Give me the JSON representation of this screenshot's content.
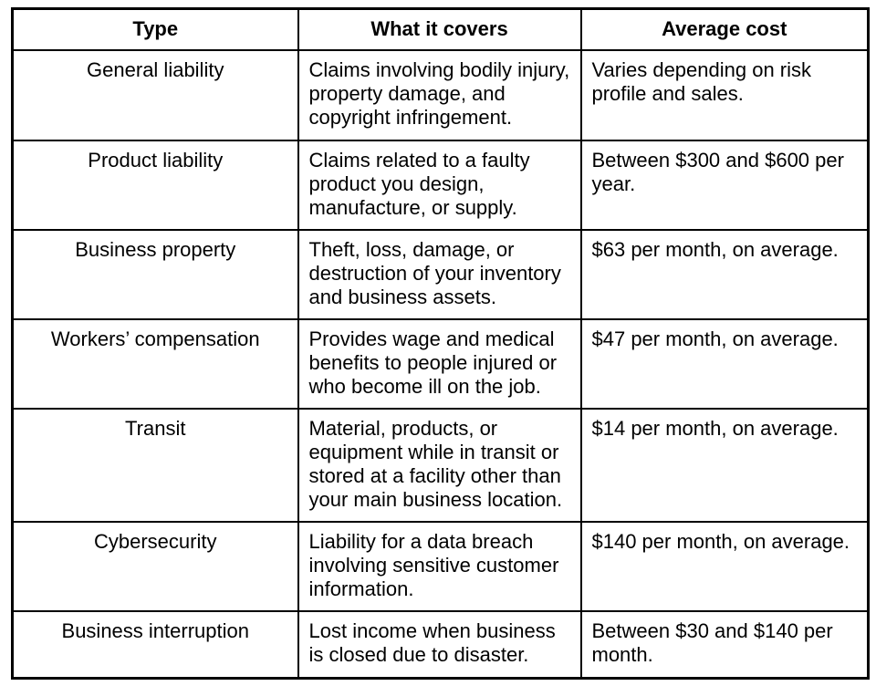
{
  "page": {
    "background_color": "#ffffff",
    "border_color": "#000000",
    "text_color": "#000000"
  },
  "table": {
    "headers": [
      "Type",
      "What it covers",
      "Average cost"
    ],
    "rows": [
      {
        "type": "General liability",
        "covers": "Claims involving bodily injury,\nproperty damage, and\ncopyright infringement.",
        "cost": "Varies depending on risk\nprofile and sales."
      },
      {
        "type": "Product liability",
        "covers": "Claims related to a faulty\nproduct you design,\nmanufacture, or supply.",
        "cost": "Between $300 and $600 per\nyear."
      },
      {
        "type": "Business property",
        "covers": "Theft, loss, damage, or\ndestruction of your inventory\nand business assets.",
        "cost": "$63 per month, on average."
      },
      {
        "type": "Workers’ compensation",
        "covers": "Provides wage and medical\nbenefits to people injured or\nwho become ill on the job.",
        "cost": "$47 per month, on average."
      },
      {
        "type": "Transit",
        "covers": "Material, products, or\nequipment while in transit or\nstored at a facility other than\nyour main business location.",
        "cost": "$14 per month, on average."
      },
      {
        "type": "Cybersecurity",
        "covers": "Liability for a data breach\ninvolving sensitive customer\ninformation.",
        "cost": "$140 per month, on average."
      },
      {
        "type": "Business interruption",
        "covers": "Lost income when business\nis closed due to disaster.",
        "cost": "Between $30 and $140 per\nmonth."
      }
    ]
  }
}
